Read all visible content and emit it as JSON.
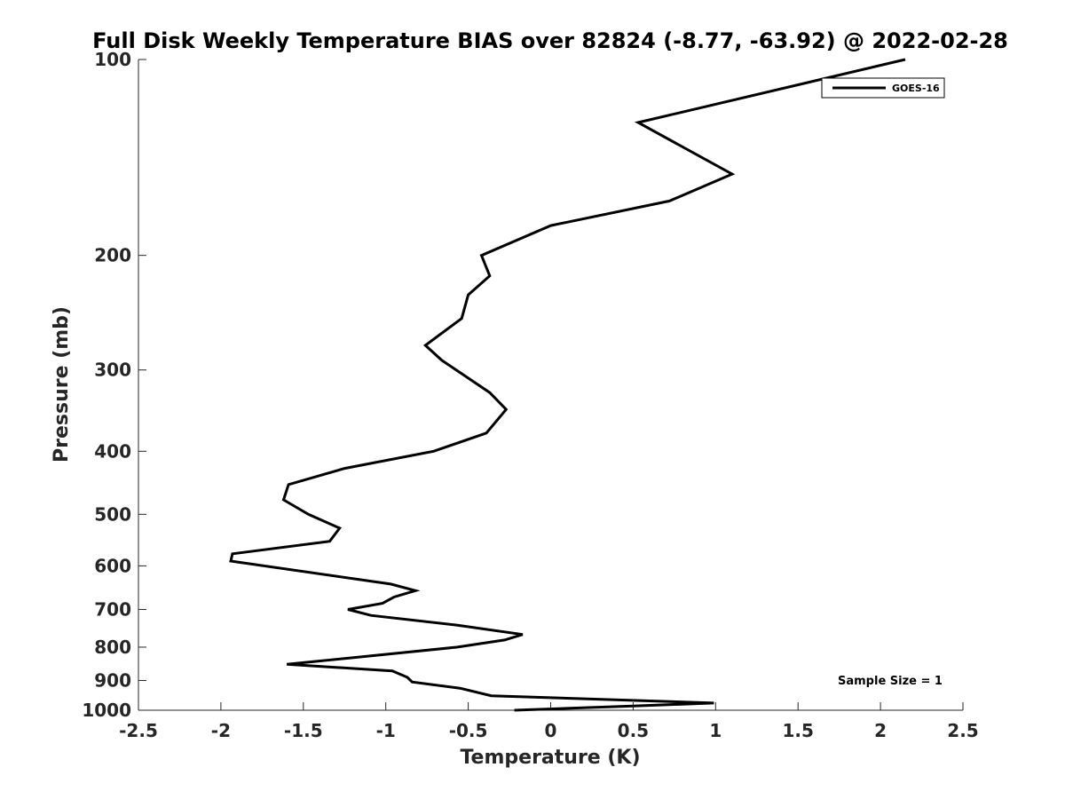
{
  "chart_data": {
    "type": "line",
    "title": "Full Disk Weekly Temperature BIAS over 82824 (-8.77, -63.92) @ 2022-02-28",
    "xlabel": "Temperature (K)",
    "ylabel": "Pressure (mb)",
    "xlim": [
      -2.5,
      2.5
    ],
    "ylim": [
      100,
      1000
    ],
    "y_scale": "log",
    "y_reversed": true,
    "x_ticks": [
      -2.5,
      -2,
      -1.5,
      -1,
      -0.5,
      0,
      0.5,
      1,
      1.5,
      2,
      2.5
    ],
    "x_tick_labels": [
      "-2.5",
      "-2",
      "-1.5",
      "-1",
      "-0.5",
      "0",
      "0.5",
      "1",
      "1.5",
      "2",
      "2.5"
    ],
    "y_ticks": [
      100,
      200,
      300,
      400,
      500,
      600,
      700,
      800,
      900,
      1000
    ],
    "y_tick_labels": [
      "100",
      "200",
      "300",
      "400",
      "500",
      "600",
      "700",
      "800",
      "900",
      "1000"
    ],
    "grid": false,
    "legend_position": "top-right",
    "annotation": "Sample Size = 1",
    "series": [
      {
        "name": "GOES-16",
        "color": "#000000",
        "points": [
          {
            "x": 2.15,
            "p": 100
          },
          {
            "x": 0.53,
            "p": 125
          },
          {
            "x": 1.1,
            "p": 150
          },
          {
            "x": 0.72,
            "p": 165
          },
          {
            "x": 0.0,
            "p": 180
          },
          {
            "x": -0.42,
            "p": 200
          },
          {
            "x": -0.37,
            "p": 215
          },
          {
            "x": -0.5,
            "p": 230
          },
          {
            "x": -0.54,
            "p": 250
          },
          {
            "x": -0.76,
            "p": 275
          },
          {
            "x": -0.66,
            "p": 290
          },
          {
            "x": -0.37,
            "p": 325
          },
          {
            "x": -0.27,
            "p": 345
          },
          {
            "x": -0.39,
            "p": 375
          },
          {
            "x": -0.71,
            "p": 400
          },
          {
            "x": -1.25,
            "p": 425
          },
          {
            "x": -1.59,
            "p": 450
          },
          {
            "x": -1.62,
            "p": 475
          },
          {
            "x": -1.47,
            "p": 500
          },
          {
            "x": -1.28,
            "p": 525
          },
          {
            "x": -1.34,
            "p": 550
          },
          {
            "x": -1.93,
            "p": 575
          },
          {
            "x": -1.94,
            "p": 590
          },
          {
            "x": -0.97,
            "p": 640
          },
          {
            "x": -0.82,
            "p": 655
          },
          {
            "x": -0.95,
            "p": 670
          },
          {
            "x": -1.02,
            "p": 685
          },
          {
            "x": -1.23,
            "p": 700
          },
          {
            "x": -1.09,
            "p": 715
          },
          {
            "x": -0.57,
            "p": 740
          },
          {
            "x": -0.17,
            "p": 765
          },
          {
            "x": -0.28,
            "p": 780
          },
          {
            "x": -0.57,
            "p": 800
          },
          {
            "x": -1.6,
            "p": 850
          },
          {
            "x": -0.96,
            "p": 870
          },
          {
            "x": -0.87,
            "p": 890
          },
          {
            "x": -0.84,
            "p": 905
          },
          {
            "x": -0.55,
            "p": 925
          },
          {
            "x": -0.36,
            "p": 950
          },
          {
            "x": 0.99,
            "p": 975
          },
          {
            "x": 0.5,
            "p": 985
          },
          {
            "x": -0.22,
            "p": 1000
          }
        ]
      }
    ]
  }
}
